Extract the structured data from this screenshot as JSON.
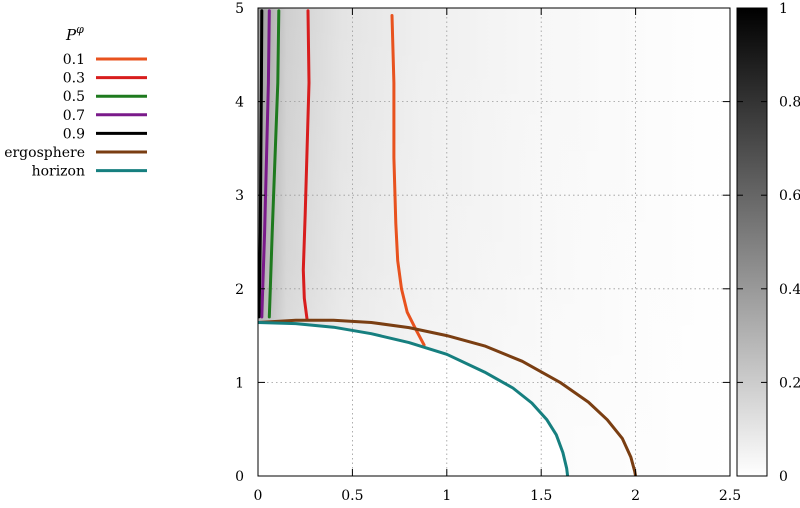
{
  "chart_data": {
    "type": "line",
    "title": "",
    "xlabel": "",
    "ylabel": "",
    "xlim": [
      0,
      2.5
    ],
    "ylim": [
      0,
      5
    ],
    "xticks": [
      "0",
      "0.5",
      "1",
      "1.5",
      "2",
      "2.5"
    ],
    "yticks": [
      "0",
      "1",
      "2",
      "3",
      "4",
      "5"
    ],
    "grid": true,
    "legend_position": "left",
    "legend_title": "P",
    "legend_title_superscript": "φ",
    "colorbar": {
      "range": [
        0,
        1
      ],
      "ticks": [
        "0",
        "0.2",
        "0.4",
        "0.6",
        "0.8",
        "1"
      ],
      "colormap": "white-to-black"
    },
    "series": [
      {
        "name": "0.1",
        "color": "#e8521e",
        "points": [
          [
            0.71,
            4.92
          ],
          [
            0.72,
            4.2
          ],
          [
            0.72,
            3.4
          ],
          [
            0.73,
            2.7
          ],
          [
            0.74,
            2.3
          ],
          [
            0.76,
            2.0
          ],
          [
            0.79,
            1.75
          ],
          [
            0.84,
            1.55
          ],
          [
            0.88,
            1.4
          ]
        ]
      },
      {
        "name": "0.3",
        "color": "#d81d1d",
        "points": [
          [
            0.265,
            4.97
          ],
          [
            0.27,
            4.2
          ],
          [
            0.26,
            3.5
          ],
          [
            0.25,
            2.8
          ],
          [
            0.24,
            2.2
          ],
          [
            0.245,
            1.9
          ],
          [
            0.26,
            1.67
          ]
        ]
      },
      {
        "name": "0.5",
        "color": "#1e7a1e",
        "points": [
          [
            0.11,
            4.97
          ],
          [
            0.105,
            4.2
          ],
          [
            0.09,
            3.4
          ],
          [
            0.075,
            2.6
          ],
          [
            0.065,
            2.0
          ],
          [
            0.06,
            1.7
          ]
        ]
      },
      {
        "name": "0.7",
        "color": "#7a1a8a",
        "points": [
          [
            0.06,
            4.97
          ],
          [
            0.055,
            4.2
          ],
          [
            0.045,
            3.4
          ],
          [
            0.035,
            2.6
          ],
          [
            0.025,
            2.0
          ],
          [
            0.02,
            1.7
          ]
        ]
      },
      {
        "name": "0.9",
        "color": "#000000",
        "points": [
          [
            0.02,
            4.97
          ],
          [
            0.018,
            4.2
          ],
          [
            0.015,
            3.4
          ],
          [
            0.012,
            2.6
          ],
          [
            0.008,
            2.0
          ],
          [
            0.005,
            1.7
          ]
        ]
      },
      {
        "name": "ergosphere",
        "color": "#7a3e12",
        "points": [
          [
            0.0,
            1.64
          ],
          [
            0.2,
            1.665
          ],
          [
            0.4,
            1.665
          ],
          [
            0.6,
            1.64
          ],
          [
            0.8,
            1.585
          ],
          [
            1.0,
            1.5
          ],
          [
            1.2,
            1.39
          ],
          [
            1.4,
            1.225
          ],
          [
            1.6,
            1.0
          ],
          [
            1.75,
            0.79
          ],
          [
            1.85,
            0.6
          ],
          [
            1.93,
            0.4
          ],
          [
            1.975,
            0.2
          ],
          [
            1.995,
            0.05
          ],
          [
            2.0,
            0.0
          ]
        ]
      },
      {
        "name": "horizon",
        "color": "#167f7f",
        "points": [
          [
            0.0,
            1.64
          ],
          [
            0.2,
            1.628
          ],
          [
            0.4,
            1.59
          ],
          [
            0.6,
            1.52
          ],
          [
            0.8,
            1.425
          ],
          [
            1.0,
            1.3
          ],
          [
            1.2,
            1.11
          ],
          [
            1.35,
            0.94
          ],
          [
            1.45,
            0.78
          ],
          [
            1.53,
            0.6
          ],
          [
            1.58,
            0.44
          ],
          [
            1.615,
            0.25
          ],
          [
            1.635,
            0.08
          ],
          [
            1.64,
            0.0
          ]
        ]
      }
    ]
  }
}
